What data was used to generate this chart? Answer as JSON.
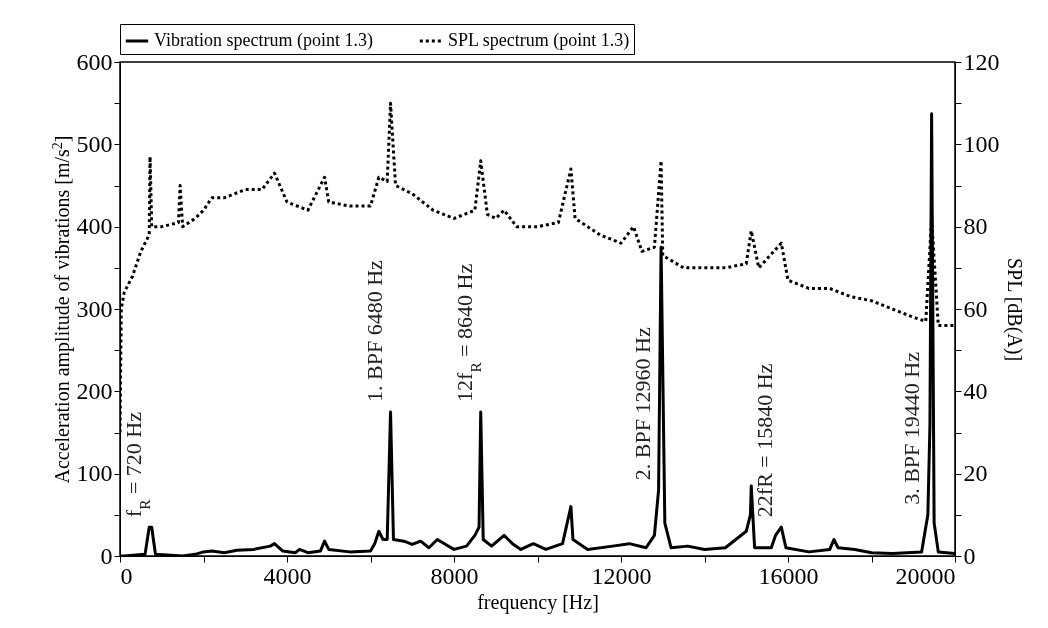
{
  "chart_data": {
    "type": "line",
    "xlabel": "frequency [Hz]",
    "ylabel": "Acceleration amplitude of vibrations [m/s$^{2}$]",
    "y2label": "SPL [dB(A)]",
    "xlim": [
      0,
      20000
    ],
    "xticks": [
      0,
      {
        "value": 2000,
        "label": null
      },
      4000,
      {
        "value": 6000,
        "label": null
      },
      8000,
      {
        "value": 10000,
        "label": null
      },
      12000,
      {
        "value": 14000,
        "label": null
      },
      16000,
      {
        "value": 18000,
        "label": null
      },
      20000
    ],
    "ylim": [
      0,
      600
    ],
    "yticks": [
      0,
      {
        "value": 50,
        "label": null
      },
      100,
      {
        "value": 150,
        "label": null
      },
      200,
      {
        "value": 250,
        "label": null
      },
      300,
      {
        "value": 350,
        "label": null
      },
      400,
      {
        "value": 450,
        "label": null
      },
      500,
      {
        "value": 550,
        "label": null
      },
      600
    ],
    "y2lim": [
      0,
      120
    ],
    "y2ticks": [
      0,
      {
        "value": 10,
        "label": null
      },
      20,
      {
        "value": 30,
        "label": null
      },
      40,
      {
        "value": 50,
        "label": null
      },
      60,
      {
        "value": 70,
        "label": null
      },
      80,
      {
        "value": 90,
        "label": null
      },
      100,
      {
        "value": 110,
        "label": null
      },
      120
    ],
    "legend": "top",
    "grid": false,
    "marker": "none",
    "series": [
      {
        "name": "Vibration spectrum (point 1.3)",
        "type": "line",
        "color": "#000000",
        "line_style": "solid",
        "x": [
          0,
          100,
          600,
          700,
          720,
          760,
          800,
          850,
          1500,
          1800,
          2000,
          2200,
          2500,
          2800,
          3200,
          3600,
          3700,
          3900,
          4200,
          4300,
          4500,
          4800,
          4900,
          5000,
          5500,
          6000,
          6100,
          6200,
          6300,
          6400,
          6480,
          6550,
          6800,
          7000,
          7200,
          7400,
          7600,
          7800,
          8000,
          8300,
          8500,
          8600,
          8640,
          8700,
          8900,
          9200,
          9400,
          9600,
          9900,
          10200,
          10600,
          10800,
          10850,
          11200,
          11800,
          12200,
          12600,
          12800,
          12900,
          12960,
          13050,
          13200,
          13600,
          14000,
          14500,
          15000,
          15100,
          15120,
          15200,
          15600,
          15700,
          15840,
          15950,
          16500,
          17000,
          17100,
          17200,
          17600,
          18000,
          18500,
          19200,
          19350,
          19400,
          19440,
          19500,
          19600,
          20000
        ],
        "values": [
          0,
          0,
          2,
          35,
          35,
          35,
          20,
          2,
          0,
          2,
          5,
          6,
          4,
          7,
          8,
          12,
          15,
          6,
          4,
          8,
          4,
          6,
          18,
          8,
          5,
          6,
          15,
          30,
          20,
          20,
          175,
          20,
          18,
          14,
          18,
          10,
          20,
          14,
          8,
          12,
          25,
          35,
          175,
          20,
          12,
          25,
          15,
          8,
          15,
          8,
          15,
          60,
          20,
          8,
          12,
          15,
          10,
          25,
          80,
          375,
          40,
          10,
          12,
          8,
          10,
          30,
          50,
          85,
          10,
          10,
          25,
          35,
          10,
          5,
          8,
          20,
          10,
          8,
          4,
          3,
          5,
          50,
          160,
          537,
          40,
          5,
          3
        ]
      },
      {
        "name": "SPL spectrum (point 1.3)",
        "type": "line",
        "axis": "y2",
        "color": "#000000",
        "line_style": "dotted",
        "x": [
          0,
          30,
          100,
          300,
          500,
          700,
          720,
          760,
          1000,
          1400,
          1440,
          1500,
          1800,
          2000,
          2200,
          2500,
          3000,
          3400,
          3700,
          4000,
          4500,
          4900,
          5000,
          5500,
          6000,
          6200,
          6400,
          6480,
          6600,
          7000,
          7500,
          8000,
          8500,
          8640,
          8800,
          9000,
          9200,
          9500,
          10000,
          10500,
          10800,
          10900,
          11500,
          12000,
          12300,
          12500,
          12800,
          12960,
          13000,
          13500,
          14000,
          14500,
          15000,
          15120,
          15300,
          15840,
          16000,
          16500,
          17000,
          17500,
          18000,
          18500,
          19000,
          19300,
          19440,
          19600,
          20000
        ],
        "values": [
          30,
          60,
          64,
          68,
          74,
          78,
          97,
          80,
          80,
          81,
          90,
          80,
          82,
          84,
          87,
          87,
          89,
          89,
          93,
          86,
          84,
          92,
          86,
          85,
          85,
          92,
          91,
          110,
          90,
          88,
          84,
          82,
          84,
          96,
          83,
          82,
          84,
          80,
          80,
          81,
          94,
          82,
          78,
          76,
          80,
          74,
          75,
          96,
          73,
          70,
          70,
          70,
          71,
          79,
          70,
          76,
          67,
          65,
          65,
          63,
          62,
          60,
          58,
          57,
          82,
          56,
          56
        ]
      }
    ],
    "annotations": [
      {
        "text": "f$_{R}$ = 720 Hz",
        "x": 720,
        "y": 35
      },
      {
        "text": "1. BPF 6480 Hz",
        "x": 6480,
        "y": 175
      },
      {
        "text": "12f$_{R}$ = 8640 Hz",
        "x": 8640,
        "y": 175
      },
      {
        "text": "2. BPF 12960 Hz",
        "x": 12900,
        "y": 80
      },
      {
        "text": "22fR = 15840 Hz",
        "x": 15840,
        "y": 35
      },
      {
        "text": "3. BPF 19440 Hz",
        "x": 19350,
        "y": 50
      }
    ]
  }
}
